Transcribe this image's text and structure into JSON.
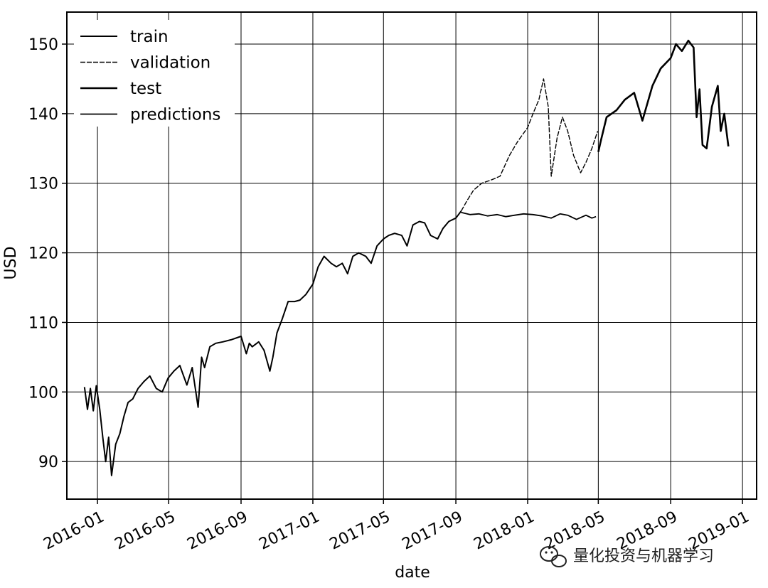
{
  "chart_data": {
    "type": "line",
    "xlabel": "date",
    "ylabel": "USD",
    "xlim": [
      "2015-11-10",
      "2019-01-25"
    ],
    "ylim": [
      84.6,
      154.6
    ],
    "grid": true,
    "legend_position": "top-left",
    "x_ticks": [
      "2016-01",
      "2016-05",
      "2016-09",
      "2017-01",
      "2017-05",
      "2017-09",
      "2018-01",
      "2018-05",
      "2018-09",
      "2019-01"
    ],
    "y_ticks": [
      90,
      100,
      110,
      120,
      130,
      140,
      150
    ],
    "series": [
      {
        "name": "train",
        "x": [
          "2015-12-10",
          "2015-12-15",
          "2015-12-20",
          "2015-12-25",
          "2015-12-30",
          "2016-01-05",
          "2016-01-10",
          "2016-01-15",
          "2016-01-20",
          "2016-01-25",
          "2016-02-01",
          "2016-02-08",
          "2016-02-15",
          "2016-02-22",
          "2016-03-01",
          "2016-03-10",
          "2016-03-20",
          "2016-03-30",
          "2016-04-10",
          "2016-04-20",
          "2016-04-30",
          "2016-05-10",
          "2016-05-20",
          "2016-06-01",
          "2016-06-10",
          "2016-06-20",
          "2016-06-26",
          "2016-07-01",
          "2016-07-10",
          "2016-07-20",
          "2016-08-01",
          "2016-08-15",
          "2016-09-01",
          "2016-09-10",
          "2016-09-15",
          "2016-09-20",
          "2016-10-01",
          "2016-10-10",
          "2016-10-20",
          "2016-10-25",
          "2016-11-01",
          "2016-11-10",
          "2016-11-20",
          "2016-12-01",
          "2016-12-10",
          "2016-12-20",
          "2017-01-01",
          "2017-01-10",
          "2017-01-20",
          "2017-02-01",
          "2017-02-10",
          "2017-02-20",
          "2017-03-01",
          "2017-03-10",
          "2017-03-20",
          "2017-04-01",
          "2017-04-10",
          "2017-04-20",
          "2017-05-01",
          "2017-05-10",
          "2017-05-20",
          "2017-06-01",
          "2017-06-10",
          "2017-06-20",
          "2017-07-01",
          "2017-07-10",
          "2017-07-20",
          "2017-08-01",
          "2017-08-10",
          "2017-08-20",
          "2017-09-01",
          "2017-09-10"
        ],
        "values": [
          100.7,
          97.5,
          100.5,
          97.3,
          100.9,
          97.5,
          93.5,
          90.0,
          93.5,
          88.0,
          92.5,
          94.0,
          96.5,
          98.5,
          99.0,
          100.5,
          101.5,
          102.3,
          100.5,
          100.0,
          102.0,
          103.0,
          103.8,
          101.0,
          103.5,
          97.8,
          105.0,
          103.5,
          106.5,
          107.0,
          107.2,
          107.5,
          108.0,
          105.5,
          107.0,
          106.5,
          107.2,
          106.0,
          103.0,
          105.0,
          108.5,
          110.5,
          113.0,
          113.0,
          113.2,
          114.0,
          115.5,
          118.0,
          119.5,
          118.5,
          118.0,
          118.5,
          117.0,
          119.5,
          120.0,
          119.5,
          118.5,
          121.0,
          122.0,
          122.5,
          122.8,
          122.5,
          121.0,
          124.0,
          124.5,
          124.3,
          122.5,
          122.0,
          123.5,
          124.5,
          125.0,
          126.0
        ]
      },
      {
        "name": "validation",
        "x": [
          "2017-09-10",
          "2017-09-20",
          "2017-10-01",
          "2017-10-15",
          "2017-11-01",
          "2017-11-15",
          "2017-12-01",
          "2017-12-15",
          "2018-01-01",
          "2018-01-10",
          "2018-01-20",
          "2018-01-28",
          "2018-02-05",
          "2018-02-10",
          "2018-02-20",
          "2018-03-01",
          "2018-03-10",
          "2018-03-20",
          "2018-04-01",
          "2018-04-10",
          "2018-04-20",
          "2018-04-30"
        ],
        "values": [
          126.0,
          127.5,
          129.0,
          130.0,
          130.5,
          131.0,
          134.0,
          136.0,
          138.0,
          140.0,
          142.0,
          145.0,
          141.0,
          131.0,
          136.5,
          139.5,
          137.5,
          134.0,
          131.5,
          133.0,
          135.0,
          137.5
        ]
      },
      {
        "name": "test",
        "x": [
          "2018-05-01",
          "2018-05-05",
          "2018-05-15",
          "2018-06-01",
          "2018-06-15",
          "2018-07-01",
          "2018-07-15",
          "2018-08-01",
          "2018-08-15",
          "2018-09-01",
          "2018-09-10",
          "2018-09-20",
          "2018-10-01",
          "2018-10-10",
          "2018-10-15",
          "2018-10-20",
          "2018-10-25",
          "2018-11-01",
          "2018-11-10",
          "2018-11-20",
          "2018-11-25",
          "2018-12-01",
          "2018-12-08"
        ],
        "values": [
          134.5,
          136.0,
          139.5,
          140.5,
          142.0,
          143.0,
          139.0,
          144.0,
          146.5,
          148.0,
          150.0,
          149.0,
          150.5,
          149.5,
          139.5,
          143.5,
          135.5,
          135.0,
          141.0,
          144.0,
          137.5,
          140.0,
          135.3
        ]
      },
      {
        "name": "predictions",
        "x": [
          "2017-09-10",
          "2017-09-25",
          "2017-10-10",
          "2017-10-25",
          "2017-11-10",
          "2017-11-25",
          "2017-12-10",
          "2017-12-25",
          "2018-01-10",
          "2018-01-25",
          "2018-02-10",
          "2018-02-25",
          "2018-03-10",
          "2018-03-25",
          "2018-04-10",
          "2018-04-20",
          "2018-04-27"
        ],
        "values": [
          125.8,
          125.5,
          125.6,
          125.3,
          125.5,
          125.2,
          125.4,
          125.6,
          125.5,
          125.3,
          125.0,
          125.6,
          125.4,
          124.8,
          125.4,
          125.0,
          125.2
        ]
      }
    ]
  },
  "watermark": {
    "text": "量化投资与机器学习",
    "icon": "wechat-icon"
  }
}
